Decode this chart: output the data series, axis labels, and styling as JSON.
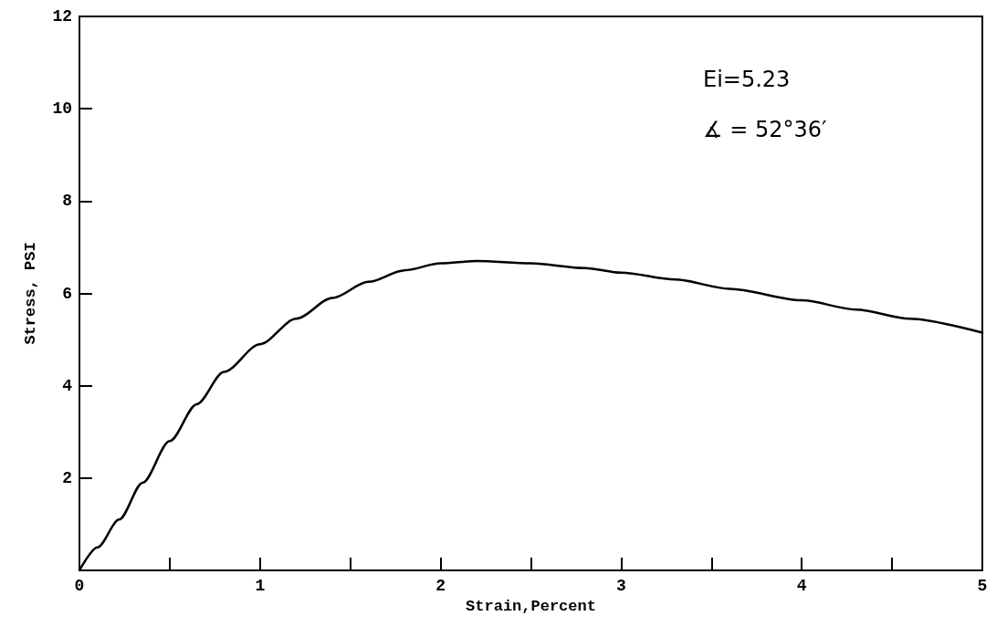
{
  "chart_data": {
    "type": "line",
    "xlabel": "Strain,Percent",
    "ylabel": "Stress, PSI",
    "x": [
      0,
      0.1,
      0.22,
      0.35,
      0.5,
      0.65,
      0.8,
      1,
      1.2,
      1.4,
      1.6,
      1.8,
      2,
      2.2,
      2.5,
      2.8,
      3,
      3.3,
      3.6,
      4,
      4.3,
      4.6,
      5
    ],
    "series": [
      {
        "color": "#000000",
        "values": [
          0,
          0.5,
          1.1,
          1.9,
          2.8,
          3.6,
          4.3,
          4.9,
          5.45,
          5.9,
          6.25,
          6.5,
          6.65,
          6.7,
          6.65,
          6.55,
          6.45,
          6.3,
          6.1,
          5.85,
          5.65,
          5.45,
          5.15
        ]
      }
    ],
    "xlim": [
      0,
      5
    ],
    "xticks": [
      0,
      {
        "value": 0.5,
        "label": null
      },
      1,
      {
        "value": 1.5,
        "label": null
      },
      2,
      {
        "value": 2.5,
        "label": null
      },
      3,
      {
        "value": 3.5,
        "label": null
      },
      4,
      {
        "value": 4.5,
        "label": null
      },
      5
    ],
    "ylim": [
      0,
      12
    ],
    "yticks": [
      {
        "value": 0,
        "label": null
      },
      2,
      4,
      6,
      8,
      10,
      12
    ],
    "grid": false,
    "marker": "none",
    "line_style": "solid",
    "annotations": [
      "Ei=5.23",
      "∡ = 52°36′"
    ]
  }
}
